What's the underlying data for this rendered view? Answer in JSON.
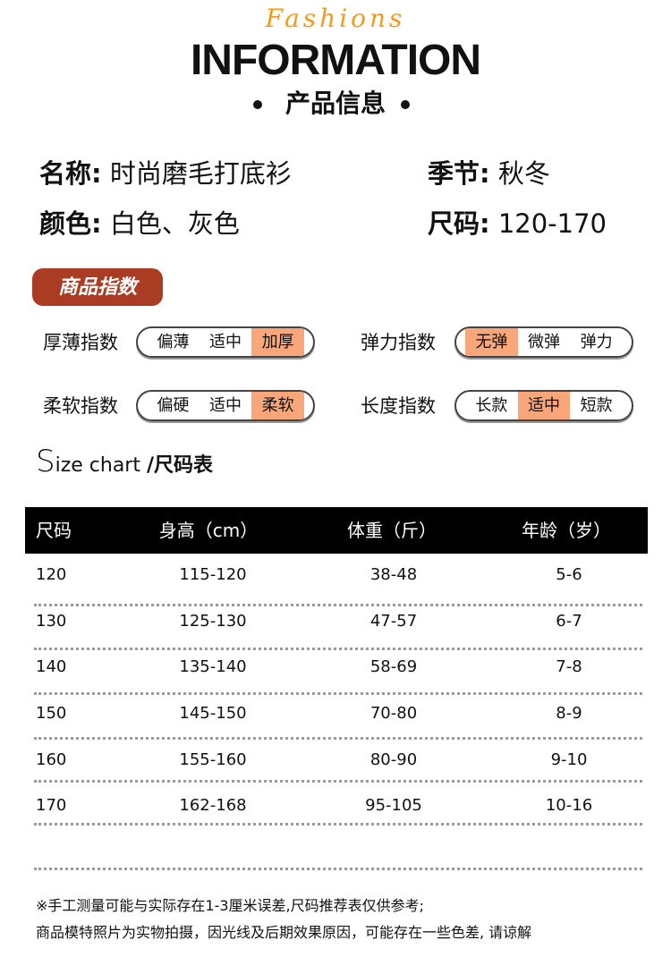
{
  "header": {
    "title": "INFORMATION",
    "script": "Fashions",
    "subtitle": "产品信息"
  },
  "info": {
    "name": {
      "label": "名称:",
      "value": "时尚磨毛打底衫"
    },
    "season": {
      "label": "季节:",
      "value": "秋冬"
    },
    "color": {
      "label": "颜色:",
      "value": "白色、灰色"
    },
    "size": {
      "label": "尺码:",
      "value": "120-170"
    }
  },
  "index": {
    "badge": "商品指数",
    "accent": "#f9a77a",
    "items": [
      {
        "label": "厚薄指数",
        "options": [
          "偏薄",
          "适中",
          "加厚"
        ],
        "selected": 2
      },
      {
        "label": "弹力指数",
        "options": [
          "无弹",
          "微弹",
          "弹力"
        ],
        "selected": 0
      },
      {
        "label": "柔软指数",
        "options": [
          "偏硬",
          "适中",
          "柔软"
        ],
        "selected": 2
      },
      {
        "label": "长度指数",
        "options": [
          "长款",
          "适中",
          "短款"
        ],
        "selected": 1
      }
    ]
  },
  "size_chart": {
    "title_big": "S",
    "title_rest": "ize chart",
    "title_cn": "/尺码表",
    "headers": [
      "尺码",
      "身高（cm）",
      "体重（斤）",
      "年龄（岁）"
    ],
    "rows": [
      [
        "120",
        "115-120",
        "38-48",
        "5-6"
      ],
      [
        "130",
        "125-130",
        "47-57",
        "6-7"
      ],
      [
        "140",
        "135-140",
        "58-69",
        "7-8"
      ],
      [
        "150",
        "145-150",
        "70-80",
        "8-9"
      ],
      [
        "160",
        "155-160",
        "80-90",
        "9-10"
      ],
      [
        "170",
        "162-168",
        "95-105",
        "10-16"
      ]
    ]
  },
  "notes": [
    "※手工测量可能与实际存在1-3厘米误差,尺码推荐表仅供参考;",
    "商品模特照片为实物拍摄，因光线及后期效果原因，可能存在一些色差, 请谅解"
  ]
}
